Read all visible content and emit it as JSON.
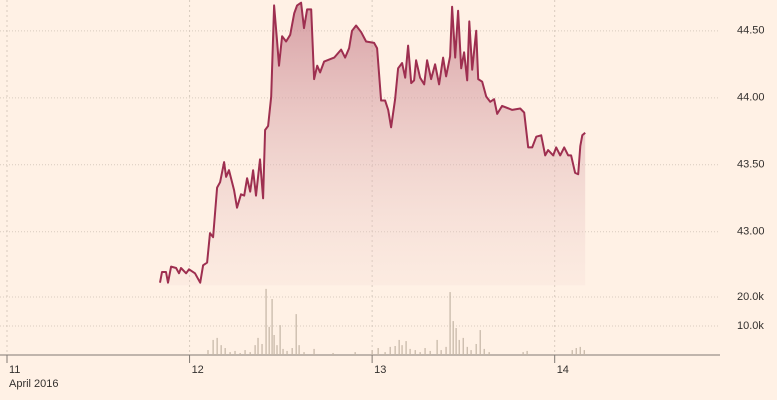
{
  "chart_data": [
    {
      "type": "line",
      "color": "#9e2f50",
      "xlabel": "April 2016",
      "x": [
        11.838,
        11.849,
        11.871,
        11.882,
        11.899,
        11.926,
        11.942,
        11.953,
        11.981,
        11.997,
        12.03,
        12.058,
        12.074,
        12.096,
        12.112,
        12.129,
        12.151,
        12.167,
        12.189,
        12.2,
        12.216,
        12.244,
        12.26,
        12.282,
        12.299,
        12.315,
        12.332,
        12.348,
        12.364,
        12.386,
        12.403,
        12.414,
        12.43,
        12.447,
        12.463,
        12.479,
        12.49,
        12.507,
        12.529,
        12.551,
        12.573,
        12.589,
        12.611,
        12.627,
        12.644,
        12.666,
        12.682,
        12.699,
        12.715,
        12.737,
        12.792,
        12.83,
        12.852,
        12.874,
        12.89,
        12.912,
        12.94,
        12.967,
        13.011,
        13.027,
        13.049,
        13.071,
        13.088,
        13.104,
        13.126,
        13.142,
        13.164,
        13.181,
        13.197,
        13.214,
        13.23,
        13.241,
        13.263,
        13.285,
        13.301,
        13.323,
        13.345,
        13.367,
        13.389,
        13.405,
        13.427,
        13.438,
        13.455,
        13.471,
        13.488,
        13.504,
        13.521,
        13.532,
        13.548,
        13.57,
        13.581,
        13.603,
        13.625,
        13.647,
        13.668,
        13.685,
        13.712,
        13.767,
        13.811,
        13.833,
        13.855,
        13.877,
        13.899,
        13.926,
        13.948,
        13.964,
        13.992,
        14.008,
        14.03,
        14.052,
        14.074,
        14.09,
        14.112,
        14.129,
        14.14,
        14.151,
        14.167
      ],
      "values": [
        42.62,
        42.7,
        42.7,
        42.62,
        42.74,
        42.73,
        42.69,
        42.73,
        42.69,
        42.72,
        42.69,
        42.62,
        42.75,
        42.77,
        42.99,
        42.96,
        43.33,
        43.37,
        43.52,
        43.41,
        43.46,
        43.31,
        43.18,
        43.28,
        43.27,
        43.4,
        43.3,
        43.46,
        43.27,
        43.54,
        43.25,
        43.76,
        43.79,
        44.01,
        44.69,
        44.43,
        44.24,
        44.46,
        44.42,
        44.47,
        44.63,
        44.69,
        44.71,
        44.52,
        44.66,
        44.66,
        44.14,
        44.24,
        44.19,
        44.27,
        44.3,
        44.36,
        44.3,
        44.37,
        44.5,
        44.54,
        44.49,
        44.42,
        44.41,
        44.37,
        43.98,
        43.98,
        43.91,
        43.78,
        43.99,
        44.22,
        44.26,
        44.15,
        44.39,
        44.11,
        44.13,
        44.28,
        44.15,
        44.1,
        44.28,
        44.14,
        44.25,
        44.1,
        44.3,
        44.16,
        44.31,
        44.68,
        44.3,
        44.65,
        44.22,
        44.34,
        44.13,
        44.57,
        44.21,
        44.5,
        44.14,
        44.12,
        44.01,
        43.97,
        43.99,
        43.88,
        43.94,
        43.91,
        43.92,
        43.89,
        43.63,
        43.63,
        43.71,
        43.72,
        43.57,
        43.61,
        43.57,
        43.63,
        43.57,
        43.63,
        43.57,
        43.57,
        43.44,
        43.43,
        43.64,
        43.72,
        43.74
      ],
      "xlim": [
        11,
        14.9
      ],
      "xticks": [
        11,
        12,
        13,
        14
      ],
      "ylim": [
        42.6,
        44.73
      ],
      "yticks": [
        {
          "value": 43,
          "label": "43.00"
        },
        {
          "value": 43.5,
          "label": "43.50"
        },
        {
          "value": 44,
          "label": "44.00"
        },
        {
          "value": 44.5,
          "label": "44.50"
        }
      ]
    },
    {
      "type": "bar",
      "color": "#c4b5a5",
      "x": [
        12.101,
        12.129,
        12.151,
        12.173,
        12.195,
        12.222,
        12.249,
        12.277,
        12.304,
        12.332,
        12.359,
        12.375,
        12.397,
        12.419,
        12.436,
        12.452,
        12.463,
        12.479,
        12.496,
        12.512,
        12.534,
        12.562,
        12.584,
        12.6,
        12.627,
        12.682,
        12.786,
        12.907,
        13.0,
        13.033,
        13.071,
        13.099,
        13.126,
        13.148,
        13.164,
        13.186,
        13.208,
        13.236,
        13.263,
        13.29,
        13.318,
        13.356,
        13.378,
        13.405,
        13.427,
        13.444,
        13.46,
        13.477,
        13.499,
        13.521,
        13.542,
        13.57,
        13.592,
        13.614,
        13.641,
        13.827,
        13.849,
        14.096,
        14.118,
        14.14,
        14.162
      ],
      "values": [
        1700,
        5200,
        5900,
        3400,
        2400,
        1000,
        1400,
        700,
        1700,
        1000,
        3400,
        5900,
        3800,
        22800,
        9700,
        19300,
        6900,
        3400,
        10300,
        2100,
        1400,
        2400,
        14100,
        3400,
        1000,
        2100,
        700,
        1000,
        1700,
        2400,
        1000,
        2800,
        3100,
        5200,
        3400,
        4800,
        2100,
        1700,
        1000,
        2400,
        1400,
        5200,
        1700,
        2800,
        21700,
        11700,
        9300,
        5200,
        5900,
        2800,
        1700,
        3800,
        8600,
        2100,
        1000,
        1000,
        1400,
        1700,
        2400,
        2800,
        1700
      ],
      "ylim": [
        0,
        23000
      ],
      "yticks": [
        {
          "value": 10000,
          "label": "10.0k"
        },
        {
          "value": 20000,
          "label": "20.0k"
        }
      ]
    }
  ]
}
